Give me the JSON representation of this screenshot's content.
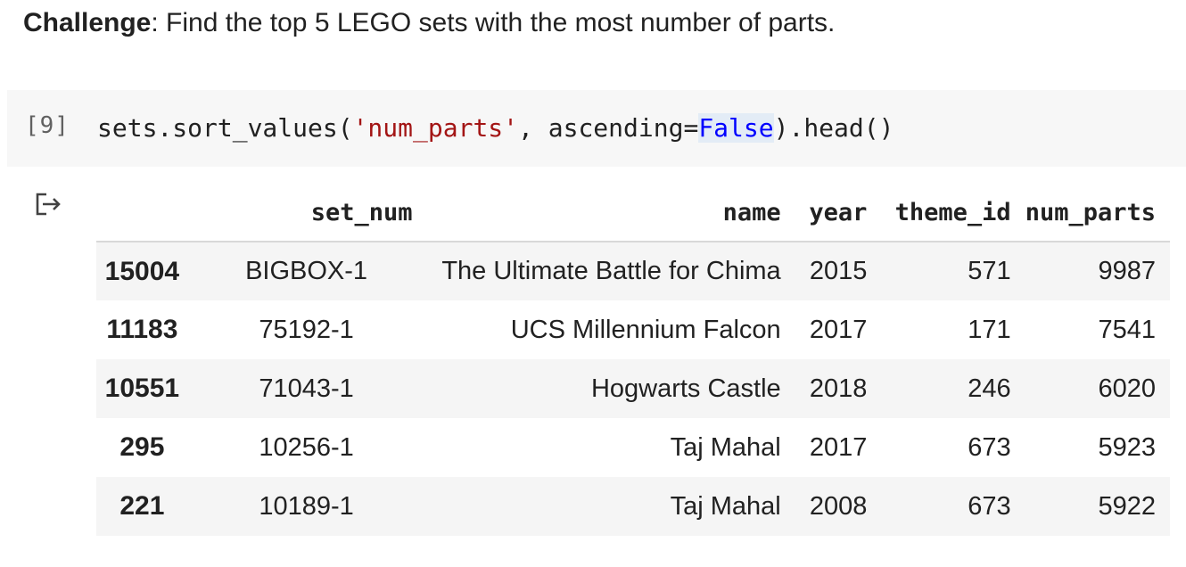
{
  "markdown": {
    "bold": "Challenge",
    "rest": ": Find the top 5 LEGO sets with the most number of parts."
  },
  "code_cell": {
    "execution_count": "[9]",
    "code": {
      "part1": "sets.sort_values(",
      "string": "'num_parts'",
      "part2": ", ascending=",
      "keyword": "False",
      "part3": ").head()"
    }
  },
  "output": {
    "icon": "output-arrow-icon",
    "table": {
      "columns": [
        "set_num",
        "name",
        "year",
        "theme_id",
        "num_parts"
      ],
      "rows": [
        {
          "index": "15004",
          "set_num": "BIGBOX-1",
          "name": "The Ultimate Battle for Chima",
          "year": "2015",
          "theme_id": "571",
          "num_parts": "9987"
        },
        {
          "index": "11183",
          "set_num": "75192-1",
          "name": "UCS Millennium Falcon",
          "year": "2017",
          "theme_id": "171",
          "num_parts": "7541"
        },
        {
          "index": "10551",
          "set_num": "71043-1",
          "name": "Hogwarts Castle",
          "year": "2018",
          "theme_id": "246",
          "num_parts": "6020"
        },
        {
          "index": "295",
          "set_num": "10256-1",
          "name": "Taj Mahal",
          "year": "2017",
          "theme_id": "673",
          "num_parts": "5923"
        },
        {
          "index": "221",
          "set_num": "10189-1",
          "name": "Taj Mahal",
          "year": "2008",
          "theme_id": "673",
          "num_parts": "5922"
        }
      ]
    }
  }
}
